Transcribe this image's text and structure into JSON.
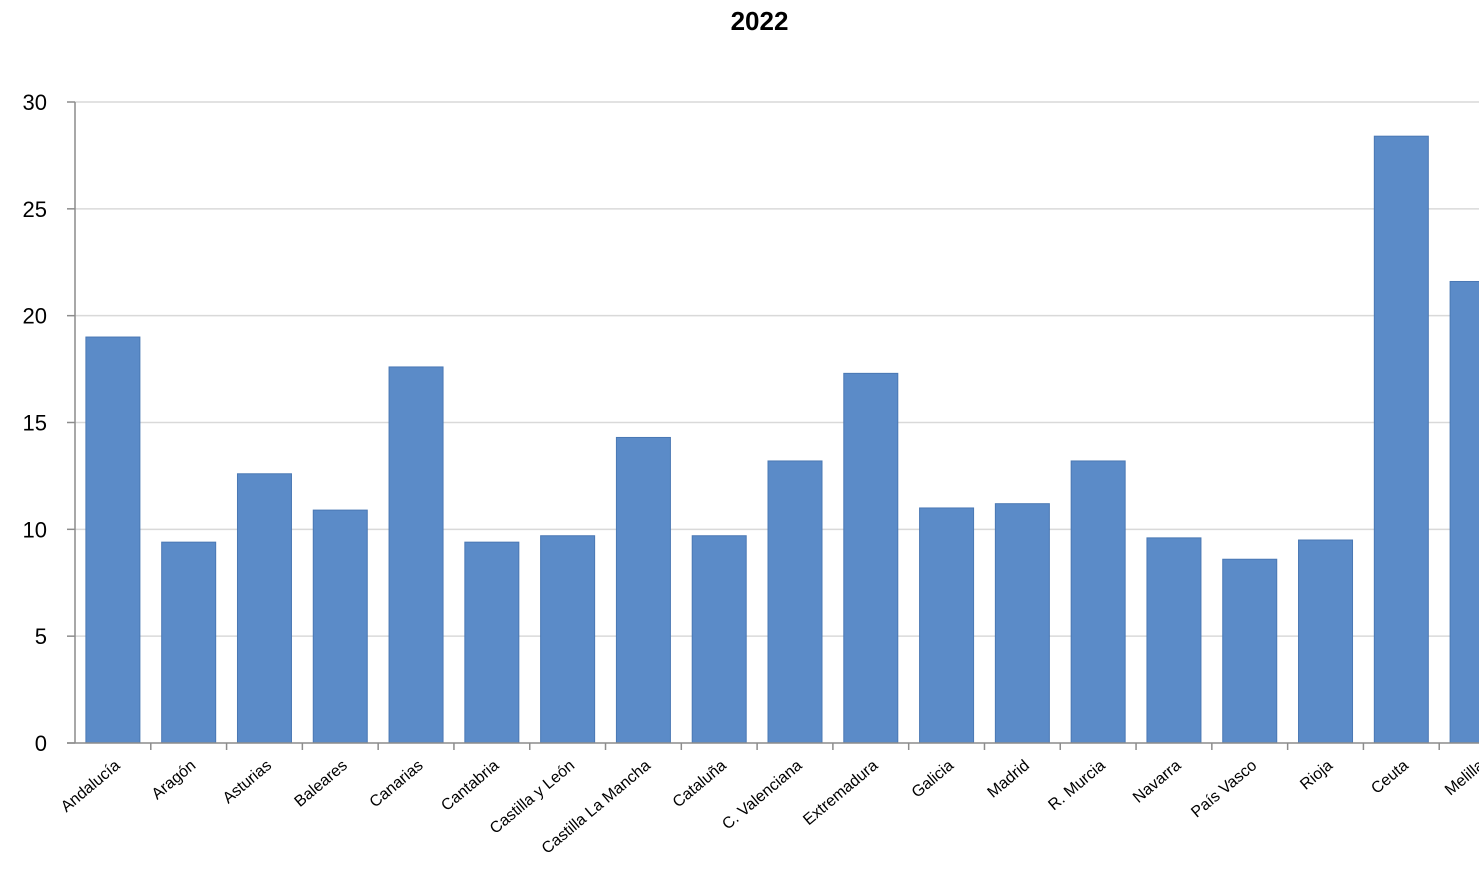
{
  "chart_data": {
    "type": "bar",
    "title": "2022",
    "xlabel": "",
    "ylabel": "",
    "ylim": [
      0,
      30
    ],
    "yticks": [
      0,
      5,
      10,
      15,
      20,
      25,
      30
    ],
    "grid": true,
    "bar_color": "#5b8bc8",
    "grid_color": "#d9d9d9",
    "axis_color": "#8c8c8c",
    "categories": [
      "Andalucía",
      "Aragón",
      "Asturias",
      "Baleares",
      "Canarias",
      "Cantabria",
      "Castilla y León",
      "Castilla La Mancha",
      "Cataluña",
      "C. Valenciana",
      "Extremadura",
      "Galicia",
      "Madrid",
      "R. Murcia",
      "Navarra",
      "País Vasco",
      "Rioja",
      "Ceuta",
      "Melilla"
    ],
    "values": [
      19.0,
      9.4,
      12.6,
      10.9,
      17.6,
      9.4,
      9.7,
      14.3,
      9.7,
      13.2,
      17.3,
      11.0,
      11.2,
      13.2,
      9.6,
      8.6,
      9.5,
      28.4,
      21.6
    ]
  }
}
